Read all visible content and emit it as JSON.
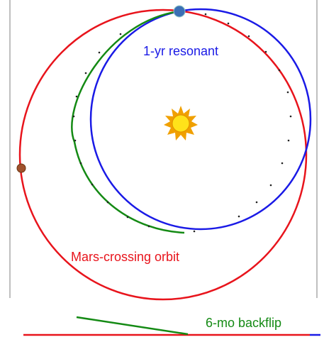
{
  "labels": {
    "resonant": "1-yr resonant",
    "mars_crossing": "Mars-crossing orbit",
    "backflip": "6-mo backflip"
  }
}
